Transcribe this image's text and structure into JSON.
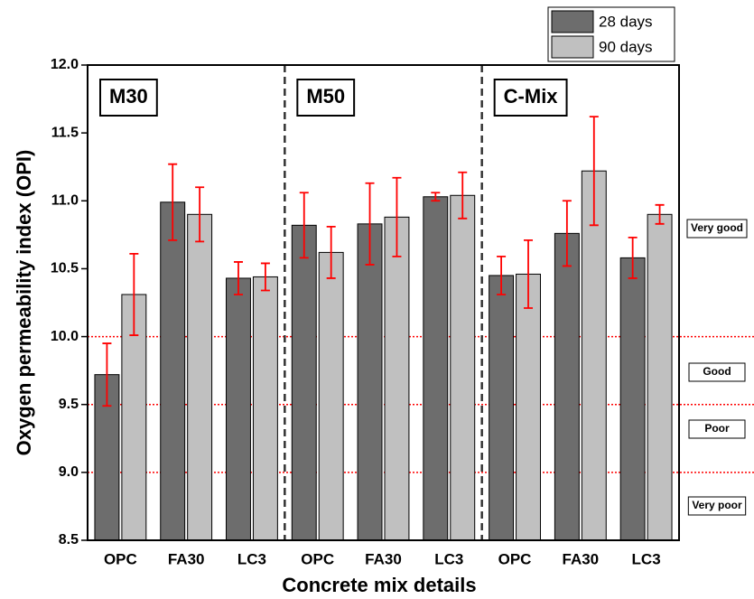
{
  "chart_data": {
    "type": "bar",
    "x_label": "Concrete mix details",
    "y_label": "Oxygen permeability index (OPI)",
    "groups": [
      {
        "name": "M30",
        "categories": [
          "OPC",
          "FA30",
          "LC3"
        ]
      },
      {
        "name": "M50",
        "categories": [
          "OPC",
          "FA30",
          "LC3"
        ]
      },
      {
        "name": "C-Mix",
        "categories": [
          "OPC",
          "FA30",
          "LC3"
        ]
      }
    ],
    "series": [
      {
        "name": "28 days",
        "color": "#6d6d6d",
        "values": [
          9.72,
          10.99,
          10.43,
          10.82,
          10.83,
          11.03,
          10.45,
          10.76,
          10.58
        ],
        "errors": [
          0.23,
          0.28,
          0.12,
          0.24,
          0.3,
          0.03,
          0.14,
          0.24,
          0.15
        ]
      },
      {
        "name": "90 days",
        "color": "#c0c0c0",
        "values": [
          10.31,
          10.9,
          10.44,
          10.62,
          10.88,
          11.04,
          10.46,
          11.22,
          10.9
        ],
        "errors": [
          0.3,
          0.2,
          0.1,
          0.19,
          0.29,
          0.17,
          0.25,
          0.4,
          0.07
        ]
      }
    ],
    "error_color": "#ff0000",
    "ylim": [
      8.5,
      12
    ],
    "yticks": [
      8.5,
      {
        "value": 9,
        "label": "9.0"
      },
      9.5,
      {
        "value": 10,
        "label": "10.0"
      },
      10.5,
      {
        "value": 11,
        "label": "11.0"
      },
      11.5,
      {
        "value": 12,
        "label": "12.0"
      }
    ],
    "reference_lines": [
      10,
      9.5,
      9
    ],
    "reference_color": "#ff0000",
    "rating_labels": [
      "Very good",
      "Good",
      "Poor",
      "Very poor"
    ],
    "legend": "top-right"
  }
}
